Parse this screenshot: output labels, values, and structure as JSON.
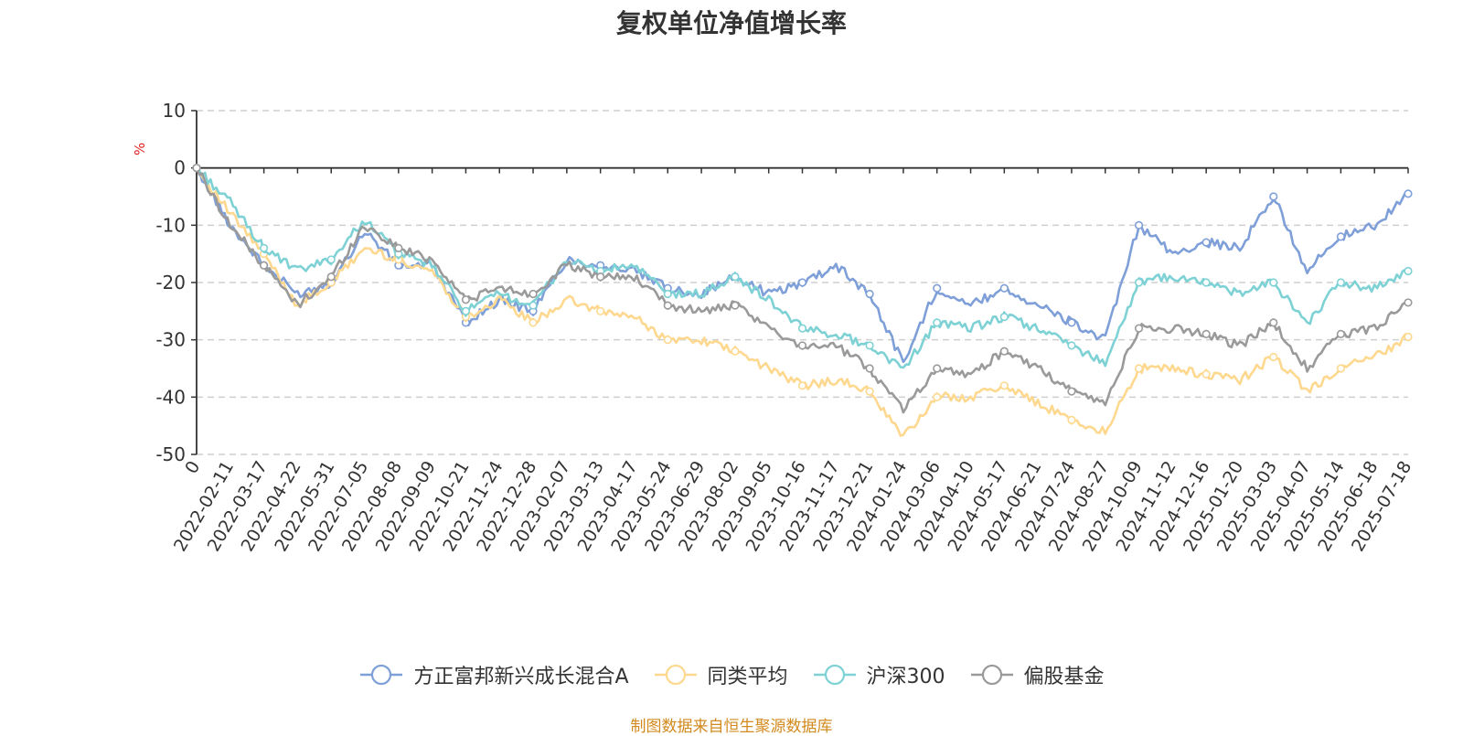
{
  "chart_data": {
    "type": "line",
    "title": "复权单位净值增长率",
    "ylabel": "%",
    "ylim": [
      -50,
      10
    ],
    "yticks": [
      10,
      0,
      -10,
      -20,
      -30,
      -40,
      -50
    ],
    "grid": true,
    "legend_position": "bottom",
    "categories": [
      "0",
      "2022-02-11",
      "2022-03-17",
      "2022-04-22",
      "2022-05-31",
      "2022-07-05",
      "2022-08-08",
      "2022-09-09",
      "2022-10-21",
      "2022-11-24",
      "2022-12-28",
      "2023-02-07",
      "2023-03-13",
      "2023-04-17",
      "2023-05-24",
      "2023-06-29",
      "2023-08-02",
      "2023-09-05",
      "2023-10-16",
      "2023-11-17",
      "2023-12-21",
      "2024-01-24",
      "2024-03-06",
      "2024-04-10",
      "2024-05-17",
      "2024-06-21",
      "2024-07-24",
      "2024-08-27",
      "2024-10-09",
      "2024-11-12",
      "2024-12-16",
      "2025-01-20",
      "2025-03-03",
      "2025-04-07",
      "2025-05-14",
      "2025-06-18",
      "2025-07-18"
    ],
    "series": [
      {
        "name": "方正富邦新兴成长混合A",
        "color": "#7f9fd8",
        "values": [
          0,
          -10,
          -17,
          -22,
          -20,
          -11,
          -17,
          -17,
          -27,
          -23,
          -25,
          -16,
          -17,
          -18,
          -21,
          -22,
          -19,
          -22,
          -20,
          -17,
          -22,
          -34,
          -21,
          -24,
          -21,
          -24,
          -27,
          -30,
          -10,
          -15,
          -13,
          -14,
          -5,
          -18,
          -12,
          -10,
          -4.5
        ]
      },
      {
        "name": "同类平均",
        "color": "#fdd88e",
        "values": [
          0,
          -8,
          -15,
          -24,
          -20,
          -14,
          -16,
          -18,
          -26,
          -23,
          -27,
          -23,
          -25,
          -26,
          -30,
          -30,
          -32,
          -35,
          -38,
          -37,
          -39,
          -47,
          -40,
          -40,
          -38,
          -41,
          -44,
          -46,
          -35,
          -35,
          -36,
          -37,
          -33,
          -39,
          -35,
          -33,
          -29.5
        ]
      },
      {
        "name": "沪深300",
        "color": "#7ed1d4",
        "values": [
          0,
          -6,
          -14,
          -18,
          -16,
          -9,
          -15,
          -17,
          -25,
          -22,
          -24,
          -16,
          -18,
          -17,
          -22,
          -22,
          -19,
          -23,
          -28,
          -29,
          -31,
          -35,
          -27,
          -28,
          -26,
          -28,
          -31,
          -34,
          -20,
          -19,
          -20,
          -22,
          -20,
          -27,
          -20,
          -21,
          -18
        ]
      },
      {
        "name": "偏股基金",
        "color": "#9a9a9a",
        "values": [
          0,
          -10,
          -17,
          -24,
          -19,
          -10,
          -14,
          -16,
          -23,
          -21,
          -22,
          -17,
          -19,
          -19,
          -24,
          -25,
          -24,
          -28,
          -31,
          -31,
          -35,
          -42,
          -35,
          -36,
          -32,
          -35,
          -39,
          -41,
          -28,
          -28,
          -29,
          -31,
          -27,
          -35,
          -29,
          -28,
          -23.5
        ]
      }
    ]
  },
  "source_note": "制图数据来自恒生聚源数据库"
}
